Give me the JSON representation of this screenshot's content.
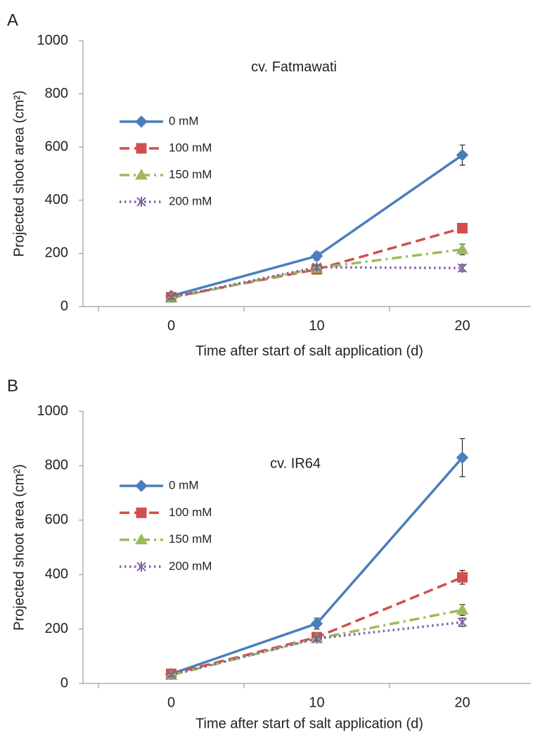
{
  "chart_data": [
    {
      "type": "line",
      "panel_label": "A",
      "title": "cv. Fatmawati",
      "x_label": "Time after start of salt application (d)",
      "y_label": "Projected shoot area (cm²)",
      "categories": [
        "0",
        "10",
        "20"
      ],
      "ylim": [
        0,
        1000
      ],
      "yticks": [
        0,
        200,
        400,
        600,
        800,
        1000
      ],
      "series": [
        {
          "name": "0 mM",
          "color": "#4a7ebb",
          "values": [
            40,
            190,
            570
          ],
          "errors": [
            5,
            15,
            38
          ]
        },
        {
          "name": "100 mM",
          "color": "#d0504d",
          "values": [
            35,
            140,
            295
          ],
          "errors": [
            5,
            8,
            15
          ]
        },
        {
          "name": "150 mM",
          "color": "#9bbb59",
          "values": [
            32,
            145,
            215
          ],
          "errors": [
            5,
            8,
            20
          ]
        },
        {
          "name": "200 mM",
          "color": "#8064a2",
          "values": [
            35,
            148,
            145
          ],
          "errors": [
            5,
            8,
            12
          ]
        }
      ]
    },
    {
      "type": "line",
      "panel_label": "B",
      "title": "cv. IR64",
      "x_label": "Time after start of salt application (d)",
      "y_label": "Projected shoot area (cm²)",
      "categories": [
        "0",
        "10",
        "20"
      ],
      "ylim": [
        0,
        1000
      ],
      "yticks": [
        0,
        200,
        400,
        600,
        800,
        1000
      ],
      "series": [
        {
          "name": "0 mM",
          "color": "#4a7ebb",
          "values": [
            35,
            220,
            830
          ],
          "errors": [
            5,
            20,
            70
          ]
        },
        {
          "name": "100 mM",
          "color": "#d0504d",
          "values": [
            35,
            170,
            390
          ],
          "errors": [
            5,
            8,
            25
          ]
        },
        {
          "name": "150 mM",
          "color": "#9bbb59",
          "values": [
            30,
            165,
            270
          ],
          "errors": [
            5,
            8,
            20
          ]
        },
        {
          "name": "200 mM",
          "color": "#8064a2",
          "values": [
            32,
            165,
            225
          ],
          "errors": [
            5,
            8,
            15
          ]
        }
      ]
    }
  ]
}
